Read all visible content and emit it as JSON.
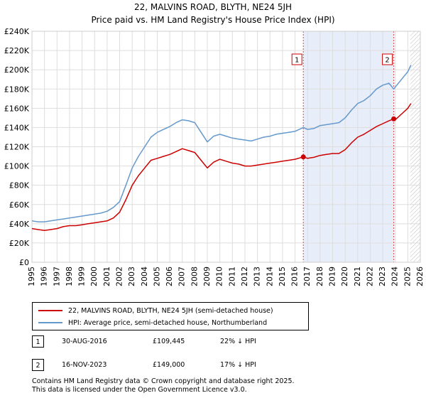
{
  "title_line1": "22, MALVINS ROAD, BLYTH, NE24 5JH",
  "title_line2": "Price paid vs. HM Land Registry's House Price Index (HPI)",
  "chart_data": {
    "type": "line",
    "x_range": [
      1995,
      2026
    ],
    "ylim": [
      0,
      240000
    ],
    "y_ticks": [
      0,
      20000,
      40000,
      60000,
      80000,
      100000,
      120000,
      140000,
      160000,
      180000,
      200000,
      220000,
      240000
    ],
    "y_tick_labels": [
      "£0",
      "£20K",
      "£40K",
      "£60K",
      "£80K",
      "£100K",
      "£120K",
      "£140K",
      "£160K",
      "£180K",
      "£200K",
      "£220K",
      "£240K"
    ],
    "x_ticks": [
      1995,
      1996,
      1997,
      1998,
      1999,
      2000,
      2001,
      2002,
      2003,
      2004,
      2005,
      2006,
      2007,
      2008,
      2009,
      2010,
      2011,
      2012,
      2013,
      2014,
      2015,
      2016,
      2017,
      2018,
      2019,
      2020,
      2021,
      2022,
      2023,
      2024,
      2025,
      2026
    ],
    "x_tick_labels": [
      "1995",
      "1996",
      "1997",
      "1998",
      "1999",
      "2000",
      "2001",
      "2002",
      "2003",
      "2004",
      "2005",
      "2006",
      "2007",
      "2008",
      "2009",
      "2010",
      "2011",
      "2012",
      "2013",
      "2014",
      "2015",
      "2016",
      "2017",
      "2018",
      "2019",
      "2020",
      "2021",
      "2022",
      "2023",
      "2024",
      "2025",
      "2026"
    ],
    "grid": true,
    "shaded_period": [
      2016.66,
      2023.88
    ],
    "hatched_after": 2025.2,
    "series": [
      {
        "name": "22, MALVINS ROAD, BLYTH, NE24 5JH (semi-detached house)",
        "color": "#cc0000",
        "x": [
          1995.0,
          1995.5,
          1996.0,
          1996.5,
          1997.0,
          1997.5,
          1998.0,
          1998.5,
          1999.0,
          1999.5,
          2000.0,
          2000.5,
          2001.0,
          2001.5,
          2002.0,
          2002.5,
          2003.0,
          2003.5,
          2004.0,
          2004.5,
          2005.0,
          2005.5,
          2006.0,
          2006.5,
          2007.0,
          2007.5,
          2008.0,
          2008.5,
          2009.0,
          2009.5,
          2010.0,
          2010.5,
          2011.0,
          2011.5,
          2012.0,
          2012.5,
          2013.0,
          2013.5,
          2014.0,
          2014.5,
          2015.0,
          2015.5,
          2016.0,
          2016.66,
          2017.0,
          2017.5,
          2018.0,
          2018.5,
          2019.0,
          2019.5,
          2020.0,
          2020.5,
          2021.0,
          2021.5,
          2022.0,
          2022.5,
          2023.0,
          2023.5,
          2023.88,
          2024.0,
          2024.5,
          2025.0,
          2025.25
        ],
        "values": [
          35000,
          34000,
          33000,
          34000,
          35000,
          37000,
          38000,
          38000,
          39000,
          40000,
          41000,
          42000,
          43000,
          46000,
          52000,
          65000,
          80000,
          90000,
          98000,
          106000,
          108000,
          110000,
          112000,
          115000,
          118000,
          116000,
          114000,
          106000,
          98000,
          104000,
          107000,
          105000,
          103000,
          102000,
          100000,
          100000,
          101000,
          102000,
          103000,
          104000,
          105000,
          106000,
          107000,
          109445,
          108000,
          109000,
          111000,
          112000,
          113000,
          113000,
          117000,
          124000,
          130000,
          133000,
          137000,
          141000,
          144000,
          147000,
          149000,
          148000,
          154000,
          160000,
          165000
        ]
      },
      {
        "name": "HPI: Average price, semi-detached house, Northumberland",
        "color": "#6699cc",
        "x": [
          1995.0,
          1995.5,
          1996.0,
          1996.5,
          1997.0,
          1997.5,
          1998.0,
          1998.5,
          1999.0,
          1999.5,
          2000.0,
          2000.5,
          2001.0,
          2001.5,
          2002.0,
          2002.5,
          2003.0,
          2003.5,
          2004.0,
          2004.5,
          2005.0,
          2005.5,
          2006.0,
          2006.5,
          2007.0,
          2007.5,
          2008.0,
          2008.5,
          2009.0,
          2009.5,
          2010.0,
          2010.5,
          2011.0,
          2011.5,
          2012.0,
          2012.5,
          2013.0,
          2013.5,
          2014.0,
          2014.5,
          2015.0,
          2015.5,
          2016.0,
          2016.66,
          2017.0,
          2017.5,
          2018.0,
          2018.5,
          2019.0,
          2019.5,
          2020.0,
          2020.5,
          2021.0,
          2021.5,
          2022.0,
          2022.5,
          2023.0,
          2023.5,
          2023.88,
          2024.0,
          2024.5,
          2025.0,
          2025.25
        ],
        "values": [
          43000,
          42000,
          42000,
          43000,
          44000,
          45000,
          46000,
          47000,
          48000,
          49000,
          50000,
          51000,
          53000,
          57000,
          63000,
          80000,
          98000,
          110000,
          120000,
          130000,
          135000,
          138000,
          141000,
          145000,
          148000,
          147000,
          145000,
          135000,
          125000,
          131000,
          133000,
          131000,
          129000,
          128000,
          127000,
          126000,
          128000,
          130000,
          131000,
          133000,
          134000,
          135000,
          136000,
          140000,
          138000,
          139000,
          142000,
          143000,
          144000,
          145000,
          150000,
          158000,
          165000,
          168000,
          173000,
          180000,
          184000,
          186000,
          180000,
          182000,
          190000,
          198000,
          205000
        ]
      }
    ],
    "annotations": [
      {
        "label": "1",
        "x": 2016.66,
        "y": 109445
      },
      {
        "label": "2",
        "x": 2023.88,
        "y": 149000
      }
    ]
  },
  "legend": {
    "items": [
      {
        "label": "22, MALVINS ROAD, BLYTH, NE24 5JH (semi-detached house)",
        "color": "#cc0000"
      },
      {
        "label": "HPI: Average price, semi-detached house, Northumberland",
        "color": "#6699cc"
      }
    ]
  },
  "transactions": [
    {
      "num": "1",
      "date": "30-AUG-2016",
      "price": "£109,445",
      "hpi": "22% ↓ HPI"
    },
    {
      "num": "2",
      "date": "16-NOV-2023",
      "price": "£149,000",
      "hpi": "17% ↓ HPI"
    }
  ],
  "footer": {
    "line1": "Contains HM Land Registry data © Crown copyright and database right 2025.",
    "line2": "This data is licensed under the Open Government Licence v3.0."
  }
}
